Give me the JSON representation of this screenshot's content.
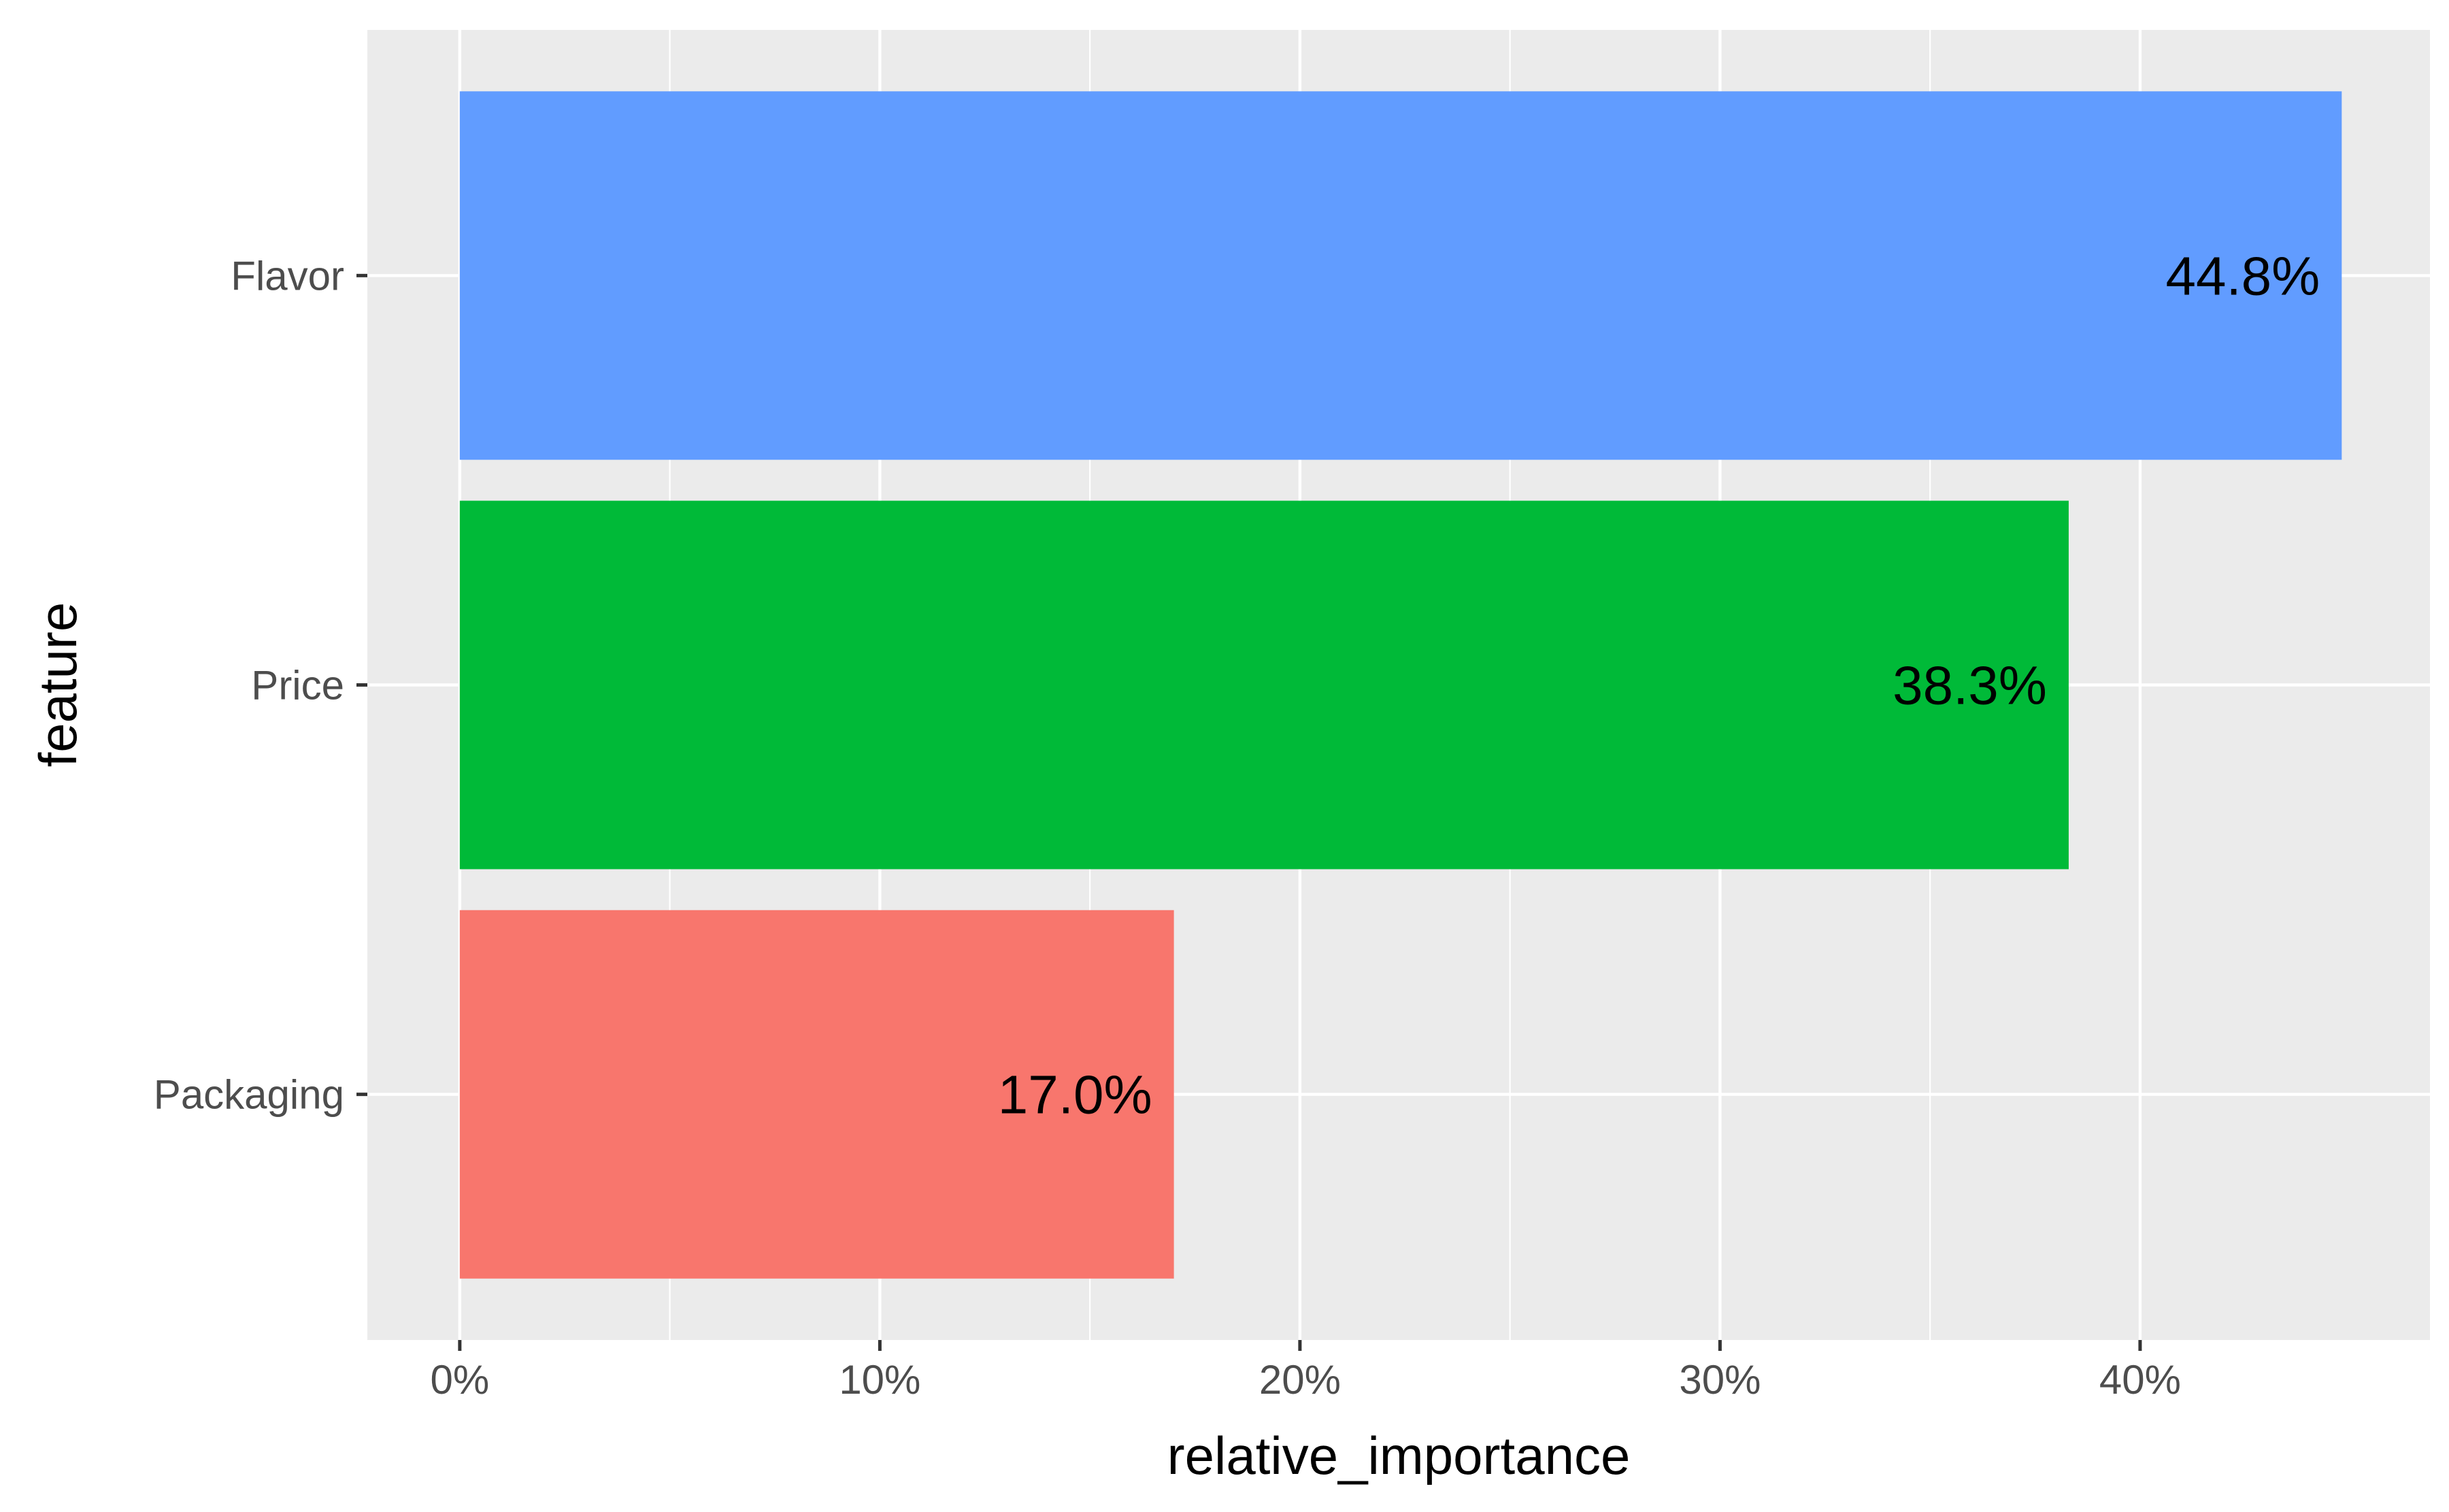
{
  "chart_data": {
    "type": "bar",
    "orientation": "horizontal",
    "title": "",
    "xlabel": "relative_importance",
    "ylabel": "feature",
    "categories": [
      "Packaging",
      "Price",
      "Flavor"
    ],
    "values": [
      17.0,
      38.3,
      44.8
    ],
    "data_labels": [
      "17.0%",
      "38.3%",
      "44.8%"
    ],
    "colors": [
      "#F8766D",
      "#00BA38",
      "#619CFF"
    ],
    "xlim": [
      -2.2,
      46.9
    ],
    "x_ticks": [
      0,
      10,
      20,
      30,
      40
    ],
    "x_tick_labels": [
      "0%",
      "10%",
      "20%",
      "30%",
      "40%"
    ],
    "grid": true,
    "legend": "none",
    "panel_background": "#EBEBEB",
    "grid_color": "#FFFFFF"
  }
}
